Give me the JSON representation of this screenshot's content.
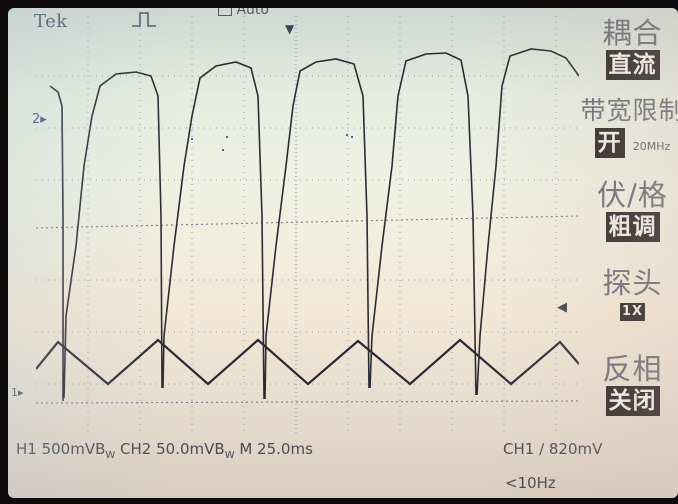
{
  "header": {
    "brand": "Tek",
    "trigger_state": "Auto"
  },
  "markers": {
    "ch2_marker": "2",
    "ch1_marker": "1"
  },
  "menu": {
    "items": [
      {
        "title": "耦合",
        "value": "直流",
        "sub": ""
      },
      {
        "title": "带宽限制",
        "value": "开",
        "sub": "20MHz"
      },
      {
        "title": "伏/格",
        "value": "粗调",
        "sub": ""
      },
      {
        "title": "探头",
        "value": "1X",
        "sub": ""
      },
      {
        "title": "反相",
        "value": "关闭",
        "sub": ""
      }
    ]
  },
  "status": {
    "left": "H1  500mVB",
    "bw1": "W",
    "mid": " CH2  50.0mVB",
    "bw2": "W",
    "timebase": " M 25.0ms",
    "trigger": "CH1  ∕  820mV",
    "freq": "<10Hz"
  },
  "colors": {
    "trace": "#2b2b36",
    "grid": "#8b9aa8",
    "menu_bg": "#2b2526"
  },
  "icons": {
    "trigger_position": "down-arrow-icon",
    "trigger_level": "left-arrow-icon",
    "pulse": "pulse-icon"
  }
}
